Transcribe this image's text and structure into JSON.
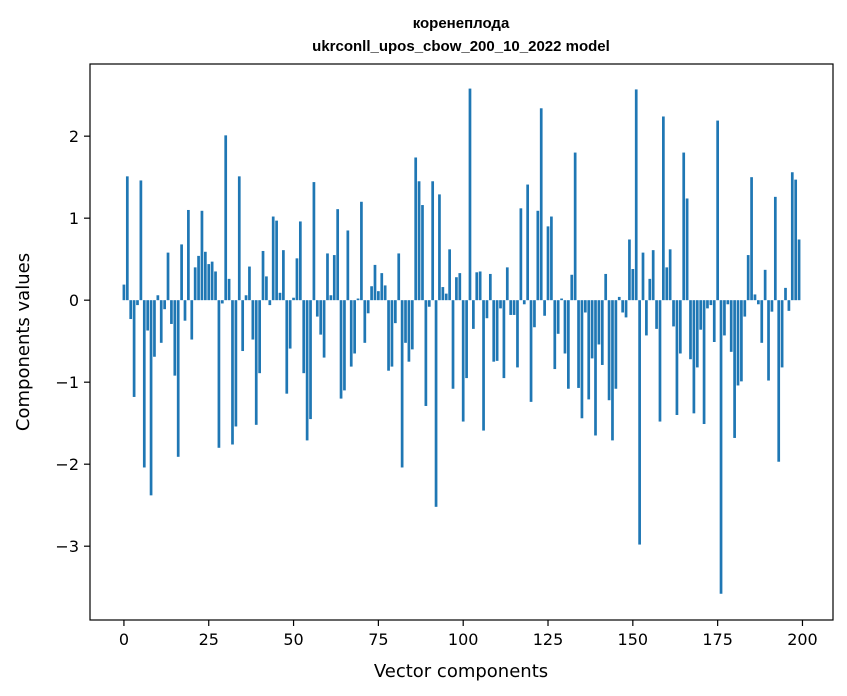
{
  "chart_data": {
    "type": "bar",
    "title_line1": "коренеплода",
    "title_line2": "ukrconll_upos_cbow_200_10_2022 model",
    "xlabel": "Vector components",
    "ylabel": "Components values",
    "xlim": [
      -10,
      209
    ],
    "ylim": [
      -3.9,
      2.88
    ],
    "xticks": [
      0,
      25,
      50,
      75,
      100,
      125,
      150,
      175,
      200
    ],
    "xtick_labels": [
      "0",
      "25",
      "50",
      "75",
      "100",
      "125",
      "150",
      "175",
      "200"
    ],
    "yticks": [
      -3,
      -2,
      -1,
      0,
      1,
      2
    ],
    "ytick_labels": [
      "−3",
      "−2",
      "−1",
      "0",
      "1",
      "2"
    ],
    "bar_color": "#1f77b4",
    "values": [
      0.19,
      1.51,
      -0.23,
      -1.18,
      -0.06,
      1.46,
      -2.04,
      -0.37,
      -2.38,
      -0.69,
      0.06,
      -0.52,
      -0.11,
      0.58,
      -0.29,
      -0.92,
      -1.91,
      0.68,
      -0.25,
      1.1,
      -0.48,
      0.4,
      0.54,
      1.09,
      0.59,
      0.44,
      0.47,
      0.35,
      -1.8,
      -0.04,
      2.01,
      0.26,
      -1.76,
      -1.54,
      1.51,
      -0.62,
      0.06,
      0.41,
      -0.48,
      -1.52,
      -0.89,
      0.6,
      0.29,
      -0.06,
      1.02,
      0.97,
      0.09,
      0.61,
      -1.14,
      -0.59,
      0.03,
      0.51,
      0.96,
      -0.89,
      -1.71,
      -1.45,
      1.44,
      -0.2,
      -0.42,
      -0.7,
      0.57,
      0.06,
      0.55,
      1.11,
      -1.2,
      -1.1,
      0.85,
      -0.81,
      -0.65,
      0.02,
      1.2,
      -0.52,
      -0.16,
      0.17,
      0.43,
      0.11,
      0.33,
      0.18,
      -0.86,
      -0.81,
      -0.28,
      0.57,
      -2.04,
      -0.52,
      -0.75,
      -0.6,
      1.74,
      1.45,
      1.16,
      -1.29,
      -0.08,
      1.45,
      -2.52,
      1.29,
      0.16,
      0.08,
      0.62,
      -1.08,
      0.28,
      0.33,
      -1.48,
      -0.95,
      2.58,
      -0.35,
      0.34,
      0.35,
      -1.59,
      -0.22,
      0.32,
      -0.75,
      -0.74,
      -0.1,
      -0.95,
      0.4,
      -0.18,
      -0.18,
      -0.82,
      1.12,
      -0.05,
      1.41,
      -1.24,
      -0.33,
      1.09,
      2.34,
      -0.19,
      0.9,
      1.02,
      -0.84,
      -0.41,
      0.02,
      -0.65,
      -1.08,
      0.31,
      1.8,
      -1.07,
      -1.44,
      -0.15,
      -1.21,
      -0.71,
      -1.65,
      -0.54,
      -0.79,
      0.32,
      -1.22,
      -1.71,
      -1.08,
      0.04,
      -0.15,
      -0.21,
      0.74,
      0.38,
      2.57,
      -2.98,
      0.58,
      -0.43,
      0.26,
      0.61,
      -0.35,
      -1.48,
      2.24,
      0.4,
      0.62,
      -0.32,
      -1.4,
      -0.65,
      1.8,
      1.24,
      -0.72,
      -1.38,
      -0.82,
      -0.36,
      -1.51,
      -0.1,
      -0.06,
      -0.51,
      2.19,
      -3.58,
      -0.43,
      -0.05,
      -0.63,
      -1.68,
      -1.04,
      -0.99,
      -0.2,
      0.55,
      1.5,
      0.07,
      -0.05,
      -0.52,
      0.37,
      -0.98,
      -0.14,
      1.26,
      -1.97,
      -0.82,
      0.15,
      -0.13,
      1.56,
      1.47,
      0.74
    ]
  }
}
